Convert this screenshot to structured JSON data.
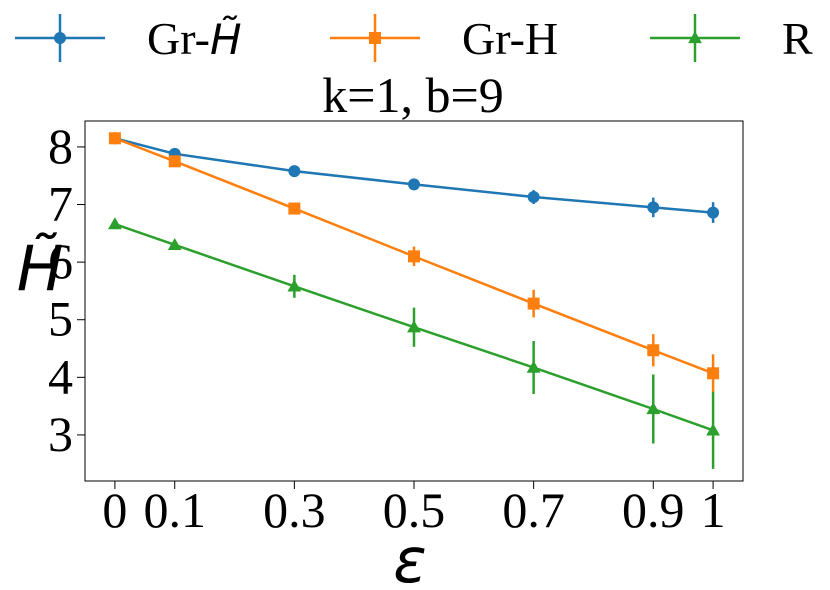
{
  "chart_data": {
    "type": "line",
    "title": "k=1, b=9",
    "xlabel": "ε",
    "ylabel": "H̃",
    "x": [
      0,
      0.1,
      0.3,
      0.5,
      0.7,
      0.9,
      1
    ],
    "xticks": [
      "0",
      "0.1",
      "0.3",
      "0.5",
      "0.7",
      "0.9",
      "1"
    ],
    "yticks": [
      "3",
      "4",
      "5",
      "6",
      "7",
      "8"
    ],
    "xlim": [
      -0.05,
      1.05
    ],
    "ylim": [
      2.2,
      8.45
    ],
    "grid": false,
    "legend_position": "top, outside plot",
    "series": [
      {
        "name": "Gr-H̃",
        "legend_prefix": "Gr-",
        "legend_symbol": "H̃",
        "color": "#1f77b4",
        "marker": "circle",
        "values": [
          8.15,
          7.88,
          7.58,
          7.35,
          7.13,
          6.95,
          6.86
        ],
        "errors": [
          0.03,
          0.04,
          0.05,
          0.07,
          0.12,
          0.17,
          0.18
        ]
      },
      {
        "name": "Gr-H",
        "color": "#ff7f0e",
        "marker": "square",
        "values": [
          8.15,
          7.75,
          6.93,
          6.1,
          5.28,
          4.47,
          4.07
        ],
        "errors": [
          0.03,
          0.06,
          0.07,
          0.17,
          0.24,
          0.28,
          0.33
        ]
      },
      {
        "name": "R",
        "color": "#2ca02c",
        "marker": "triangle",
        "values": [
          6.66,
          6.3,
          5.58,
          4.87,
          4.17,
          3.45,
          3.08
        ],
        "errors": [
          0.03,
          0.04,
          0.2,
          0.34,
          0.46,
          0.6,
          0.67
        ]
      }
    ]
  }
}
